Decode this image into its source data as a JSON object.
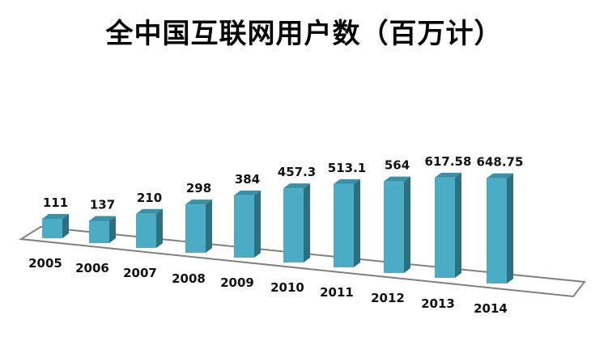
{
  "title": "全中国互联网用户数（百万计）",
  "colors": {
    "bar_front": "#4BACC6",
    "bar_top": "#3C8FA5",
    "bar_side": "#2E6F80",
    "floor_line": "#808080"
  },
  "chart_data": {
    "type": "bar",
    "style": "3d-column",
    "title": "全中国互联网用户数（百万计）",
    "xlabel": "",
    "ylabel": "",
    "unit": "百万",
    "categories": [
      "2005",
      "2006",
      "2007",
      "2008",
      "2009",
      "2010",
      "2011",
      "2012",
      "2013",
      "2014"
    ],
    "values": [
      111,
      137,
      210,
      298,
      384,
      457.3,
      513.1,
      564,
      617.58,
      648.75
    ],
    "value_labels": [
      "111",
      "137",
      "210",
      "298",
      "384",
      "457.3",
      "513.1",
      "564",
      "617.58",
      "648.75"
    ],
    "legend": null,
    "grid": false,
    "axis_visible": false
  }
}
